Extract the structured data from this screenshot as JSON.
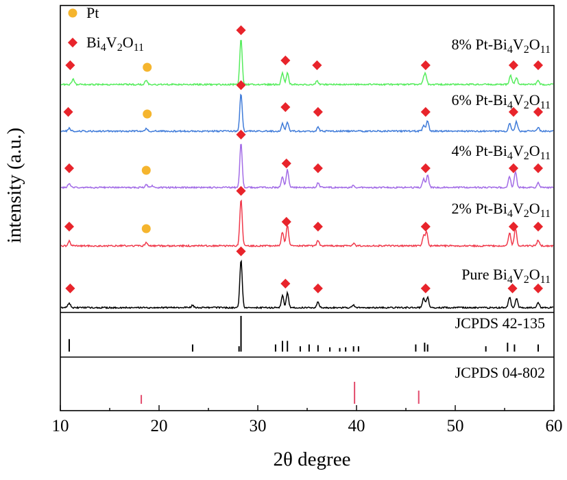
{
  "chart_data": {
    "type": "line",
    "title": "",
    "xlabel": "2θ degree",
    "ylabel": "intensity (a.u.)",
    "xlim": [
      10,
      60
    ],
    "x_ticks": [
      10,
      20,
      30,
      40,
      50,
      60
    ],
    "legend": {
      "position": "top-left",
      "entries": [
        {
          "name": "Pt",
          "marker": "circle",
          "color": "#f5b52e"
        },
        {
          "name": "Bi4V2O11",
          "marker": "diamond",
          "color": "#e8242b"
        }
      ]
    },
    "series": [
      {
        "name": "Pure Bi4V2O11",
        "label_text": "Pure Bi",
        "color": "#000000",
        "peaks": [
          [
            10.9,
            0.1
          ],
          [
            23.4,
            0.05
          ],
          [
            28.3,
            1.0
          ],
          [
            32.5,
            0.25
          ],
          [
            33.0,
            0.3
          ],
          [
            36.1,
            0.12
          ],
          [
            39.7,
            0.05
          ],
          [
            46.8,
            0.2
          ],
          [
            47.2,
            0.22
          ],
          [
            55.5,
            0.22
          ],
          [
            56.2,
            0.2
          ],
          [
            58.4,
            0.1
          ]
        ],
        "bi_markers": [
          11.0,
          28.3,
          32.8,
          36.1,
          47.0,
          55.8,
          58.4
        ],
        "pt_markers": []
      },
      {
        "name": "2% Pt-Bi4V2O11",
        "label_text": "2% Pt-Bi",
        "color": "#f0384a",
        "peaks": [
          [
            10.9,
            0.1
          ],
          [
            18.7,
            0.08
          ],
          [
            28.3,
            1.0
          ],
          [
            32.5,
            0.3
          ],
          [
            33.0,
            0.45
          ],
          [
            36.1,
            0.12
          ],
          [
            39.7,
            0.05
          ],
          [
            46.8,
            0.22
          ],
          [
            47.1,
            0.3
          ],
          [
            55.5,
            0.28
          ],
          [
            56.1,
            0.38
          ],
          [
            58.4,
            0.12
          ]
        ],
        "bi_markers": [
          10.9,
          28.3,
          32.9,
          36.1,
          47.0,
          55.9,
          58.4
        ],
        "pt_markers": [
          18.7
        ]
      },
      {
        "name": "4% Pt-Bi4V2O11",
        "label_text": "4% Pt-Bi",
        "color": "#a26be6",
        "peaks": [
          [
            10.9,
            0.08
          ],
          [
            18.7,
            0.07
          ],
          [
            19.3,
            0.04
          ],
          [
            28.3,
            1.0
          ],
          [
            32.5,
            0.25
          ],
          [
            33.0,
            0.4
          ],
          [
            36.1,
            0.1
          ],
          [
            39.7,
            0.05
          ],
          [
            46.8,
            0.2
          ],
          [
            47.2,
            0.28
          ],
          [
            55.5,
            0.25
          ],
          [
            56.1,
            0.35
          ],
          [
            58.4,
            0.1
          ]
        ],
        "bi_markers": [
          10.9,
          28.3,
          32.9,
          36.1,
          47.0,
          55.9,
          58.4
        ],
        "pt_markers": [
          18.7
        ]
      },
      {
        "name": "6% Pt-Bi4V2O11",
        "label_text": "6% Pt-Bi",
        "color": "#3f7bd9",
        "peaks": [
          [
            10.9,
            0.08
          ],
          [
            18.7,
            0.08
          ],
          [
            28.3,
            1.0
          ],
          [
            32.5,
            0.2
          ],
          [
            33.0,
            0.25
          ],
          [
            36.1,
            0.1
          ],
          [
            46.8,
            0.15
          ],
          [
            47.2,
            0.28
          ],
          [
            55.5,
            0.2
          ],
          [
            56.2,
            0.25
          ],
          [
            58.4,
            0.1
          ]
        ],
        "bi_markers": [
          10.8,
          28.3,
          32.8,
          36.1,
          47.0,
          55.9,
          58.4
        ],
        "pt_markers": [
          18.8
        ]
      },
      {
        "name": "8% Pt-Bi4V2O11",
        "label_text": "8% Pt-Bi",
        "color": "#55ec5c",
        "peaks": [
          [
            11.3,
            0.12
          ],
          [
            18.7,
            0.1
          ],
          [
            28.3,
            1.0
          ],
          [
            32.5,
            0.25
          ],
          [
            33.0,
            0.25
          ],
          [
            36.0,
            0.08
          ],
          [
            46.8,
            0.12
          ],
          [
            47.0,
            0.2
          ],
          [
            55.6,
            0.2
          ],
          [
            56.2,
            0.15
          ],
          [
            58.4,
            0.08
          ]
        ],
        "bi_markers": [
          11.0,
          28.3,
          32.8,
          36.0,
          47.0,
          55.9,
          58.4
        ],
        "pt_markers": [
          18.8
        ]
      }
    ],
    "reference_patterns": [
      {
        "name": "JCPDS 42-135",
        "color": "#000000",
        "lines": [
          [
            10.9,
            0.35
          ],
          [
            23.4,
            0.2
          ],
          [
            28.3,
            1.0
          ],
          [
            28.1,
            0.15
          ],
          [
            31.8,
            0.2
          ],
          [
            32.5,
            0.3
          ],
          [
            33.0,
            0.3
          ],
          [
            34.3,
            0.15
          ],
          [
            35.2,
            0.2
          ],
          [
            36.1,
            0.18
          ],
          [
            37.3,
            0.12
          ],
          [
            38.3,
            0.1
          ],
          [
            38.9,
            0.12
          ],
          [
            39.7,
            0.15
          ],
          [
            40.2,
            0.15
          ],
          [
            46.0,
            0.2
          ],
          [
            46.9,
            0.25
          ],
          [
            47.2,
            0.2
          ],
          [
            53.1,
            0.15
          ],
          [
            55.3,
            0.25
          ],
          [
            56.0,
            0.2
          ],
          [
            58.4,
            0.2
          ]
        ]
      },
      {
        "name": "JCPDS 04-802",
        "color": "#e24a6b",
        "lines": [
          [
            18.2,
            0.4
          ],
          [
            39.8,
            1.0
          ],
          [
            46.3,
            0.6
          ]
        ]
      }
    ]
  }
}
